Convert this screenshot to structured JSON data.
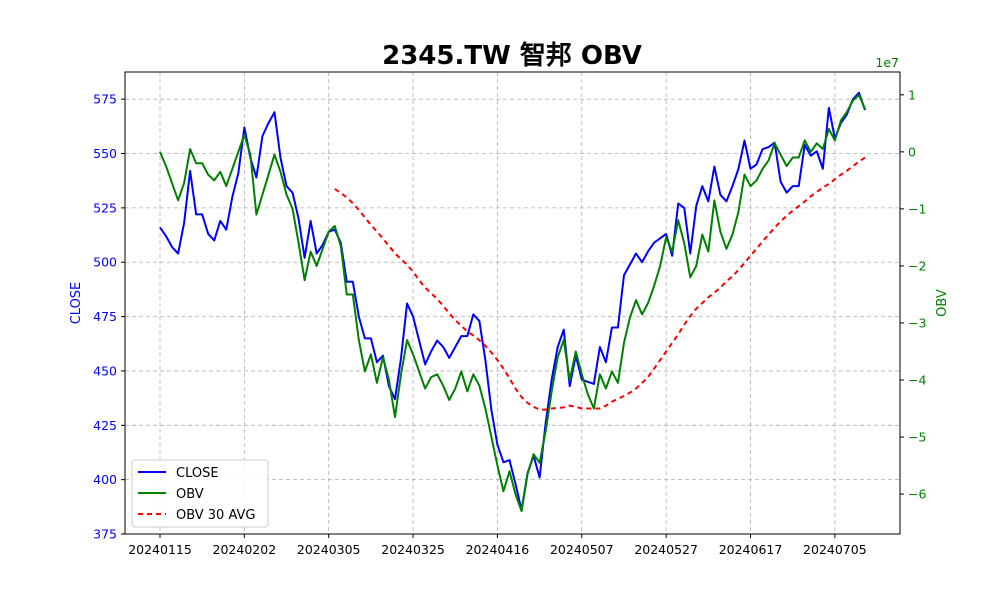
{
  "chart_data": {
    "type": "line",
    "title": "2345.TW 智邦 OBV",
    "x_tick_labels": [
      "20240115",
      "20240202",
      "20240305",
      "20240325",
      "20240416",
      "20240507",
      "20240527",
      "20240617",
      "20240705"
    ],
    "x_tick_indices": [
      0,
      14,
      28,
      42,
      56,
      70,
      84,
      98,
      112
    ],
    "left_axis": {
      "label": "CLOSE",
      "color": "#0000ff",
      "ylim": [
        375,
        587.5
      ],
      "ticks": [
        375,
        400,
        425,
        450,
        475,
        500,
        525,
        550,
        575
      ]
    },
    "right_axis": {
      "label": "OBV",
      "color": "#008000",
      "scale_label": "1e7",
      "ylim": [
        -6.7,
        1.4
      ],
      "ticks": [
        -6,
        -5,
        -4,
        -3,
        -2,
        -1,
        0,
        1
      ]
    },
    "grid": true,
    "legend_placement": "lower-left",
    "series": [
      {
        "name": "CLOSE",
        "axis": "left",
        "color": "#0000ff",
        "style": "solid",
        "values": [
          516,
          512,
          507,
          504,
          518,
          542,
          522,
          522,
          513,
          510,
          519,
          515,
          530,
          541,
          562,
          548,
          539,
          558,
          564,
          569,
          548,
          535,
          532,
          520,
          502,
          519,
          504,
          508,
          514,
          515,
          509,
          491,
          491,
          475,
          465,
          465,
          454,
          457,
          443,
          437,
          456,
          481,
          475,
          464,
          453,
          459,
          464,
          461,
          456,
          461,
          466,
          466,
          476,
          473,
          455,
          432,
          416,
          408,
          409,
          398,
          386,
          403,
          411,
          401,
          426,
          446,
          461,
          469,
          443,
          457,
          446,
          445,
          444,
          461,
          454,
          470,
          470,
          494,
          499,
          504,
          500,
          505,
          509,
          511,
          513,
          503,
          527,
          525,
          504,
          526,
          535,
          528,
          544,
          531,
          528,
          535,
          543,
          556,
          543,
          545,
          552,
          553,
          555,
          537,
          532,
          535,
          535,
          554,
          549,
          551,
          543,
          571,
          557,
          564,
          568,
          575,
          578,
          570
        ]
      },
      {
        "name": "OBV",
        "axis": "right",
        "color": "#008000",
        "style": "solid",
        "values": [
          0.0,
          -0.25,
          -0.55,
          -0.85,
          -0.55,
          0.05,
          -0.2,
          -0.2,
          -0.4,
          -0.5,
          -0.35,
          -0.6,
          -0.3,
          0.0,
          0.3,
          -0.05,
          -1.1,
          -0.75,
          -0.4,
          -0.05,
          -0.35,
          -0.75,
          -1.0,
          -1.6,
          -2.25,
          -1.75,
          -2.0,
          -1.7,
          -1.4,
          -1.3,
          -1.65,
          -2.5,
          -2.5,
          -3.3,
          -3.85,
          -3.55,
          -4.05,
          -3.6,
          -4.0,
          -4.65,
          -3.9,
          -3.3,
          -3.55,
          -3.85,
          -4.15,
          -3.95,
          -3.9,
          -4.1,
          -4.35,
          -4.15,
          -3.85,
          -4.2,
          -3.9,
          -4.1,
          -4.5,
          -5.0,
          -5.5,
          -5.95,
          -5.6,
          -6.0,
          -6.3,
          -5.65,
          -5.3,
          -5.45,
          -4.9,
          -4.2,
          -3.6,
          -3.3,
          -4.0,
          -3.5,
          -3.9,
          -4.25,
          -4.5,
          -3.9,
          -4.15,
          -3.85,
          -4.05,
          -3.35,
          -2.9,
          -2.6,
          -2.85,
          -2.65,
          -2.35,
          -2.0,
          -1.5,
          -1.75,
          -1.2,
          -1.6,
          -2.2,
          -2.0,
          -1.45,
          -1.75,
          -0.85,
          -1.4,
          -1.7,
          -1.45,
          -1.05,
          -0.4,
          -0.6,
          -0.5,
          -0.3,
          -0.15,
          0.15,
          -0.05,
          -0.25,
          -0.1,
          -0.1,
          0.2,
          0.0,
          0.15,
          0.05,
          0.4,
          0.2,
          0.55,
          0.7,
          0.9,
          1.0,
          0.75
        ]
      },
      {
        "name": "OBV 30 AVG",
        "axis": "right",
        "color": "#ff0000",
        "style": "dashed",
        "start_index": 29,
        "values": [
          -0.65,
          -0.72,
          -0.8,
          -0.9,
          -1.02,
          -1.15,
          -1.28,
          -1.4,
          -1.52,
          -1.65,
          -1.78,
          -1.88,
          -1.98,
          -2.1,
          -2.25,
          -2.38,
          -2.48,
          -2.58,
          -2.7,
          -2.83,
          -2.95,
          -3.05,
          -3.15,
          -3.22,
          -3.3,
          -3.4,
          -3.52,
          -3.65,
          -3.8,
          -3.97,
          -4.15,
          -4.3,
          -4.4,
          -4.47,
          -4.52,
          -4.52,
          -4.5,
          -4.49,
          -4.48,
          -4.45,
          -4.47,
          -4.5,
          -4.5,
          -4.5,
          -4.5,
          -4.45,
          -4.38,
          -4.33,
          -4.28,
          -4.22,
          -4.15,
          -4.05,
          -3.95,
          -3.8,
          -3.65,
          -3.5,
          -3.35,
          -3.2,
          -3.03,
          -2.88,
          -2.75,
          -2.65,
          -2.55,
          -2.47,
          -2.38,
          -2.27,
          -2.18,
          -2.07,
          -1.95,
          -1.82,
          -1.7,
          -1.57,
          -1.45,
          -1.33,
          -1.22,
          -1.12,
          -1.03,
          -0.95,
          -0.87,
          -0.78,
          -0.7,
          -0.63,
          -0.56,
          -0.48,
          -0.4,
          -0.33,
          -0.25,
          -0.17,
          -0.1
        ]
      }
    ]
  }
}
